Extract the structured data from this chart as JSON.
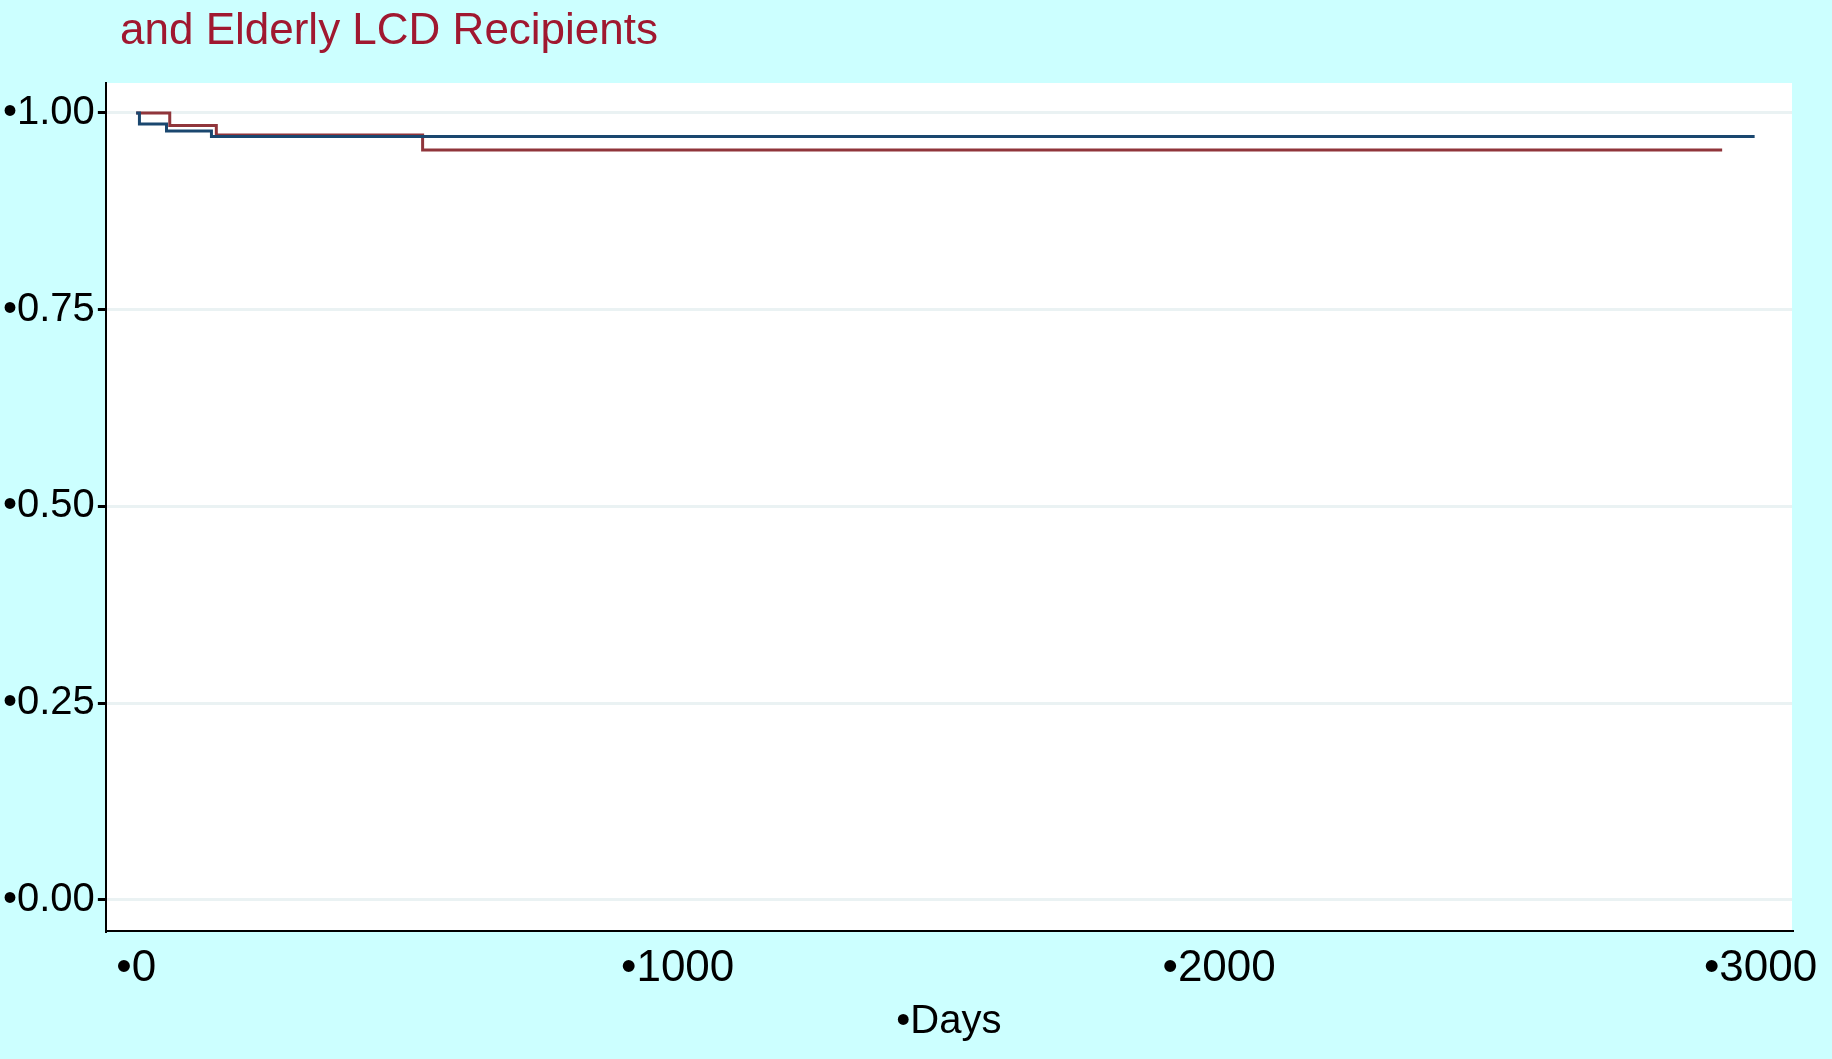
{
  "chart_data": {
    "type": "step",
    "title": "and Elderly LCD Recipients",
    "xlabel": "•Days",
    "series": [
      {
        "color": "#1a476f",
        "x": [
          0,
          6,
          56,
          139,
          2989
        ],
        "values": [
          1,
          0.986,
          0.977,
          0.97,
          0.97
        ]
      },
      {
        "color": "#90353b",
        "x": [
          0,
          62,
          148,
          529,
          2929
        ],
        "values": [
          1,
          0.984,
          0.972,
          0.953,
          0.953
        ]
      }
    ],
    "xlim": [
      -56,
      3058
    ],
    "xticks": [
      {
        "value": 0,
        "label": "•0"
      },
      {
        "value": 1000,
        "label": "•1000"
      },
      {
        "value": 2000,
        "label": "•2000"
      },
      {
        "value": 3000,
        "label": "•3000"
      }
    ],
    "ylim": [
      -0.04,
      1.038
    ],
    "yticks": [
      {
        "value": 0,
        "label": "•0.00"
      },
      {
        "value": 0.25,
        "label": "•0.25"
      },
      {
        "value": 0.5,
        "label": "•0.50"
      },
      {
        "value": 0.75,
        "label": "•0.75"
      },
      {
        "value": 1,
        "label": "•1.00"
      }
    ],
    "grid": "y",
    "legend": false
  }
}
